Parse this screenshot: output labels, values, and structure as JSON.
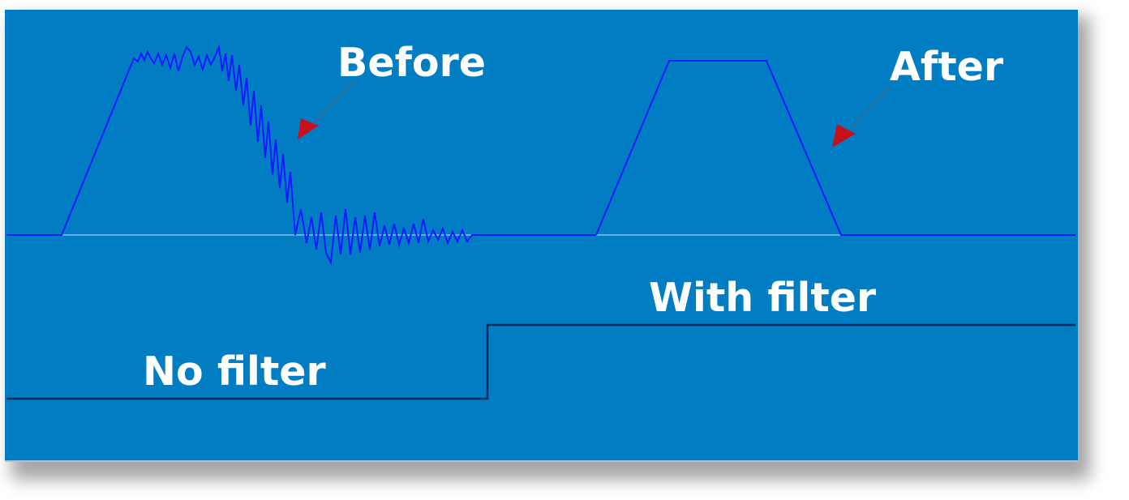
{
  "labels": {
    "before": "Before",
    "after": "After",
    "with_filter": "With filter",
    "no_filter": "No filter"
  },
  "colors": {
    "background": "#017dc4",
    "waveform": "#1a1aff",
    "baseline": "#9fd0f0",
    "step_line": "#0a2a5e",
    "arrow_fill": "#c8101a",
    "arrow_line": "#4a6a8a",
    "text": "#ffffff"
  }
}
